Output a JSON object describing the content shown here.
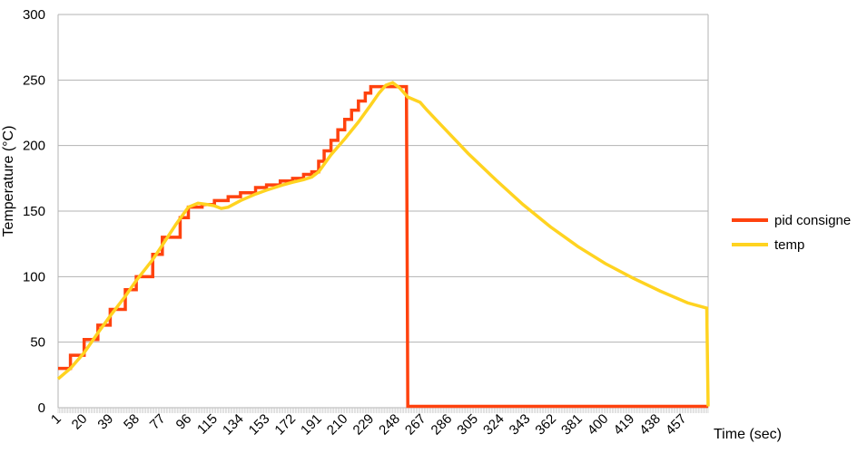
{
  "chart_data": {
    "type": "line",
    "title": "",
    "xlabel": "Time (sec)",
    "ylabel": "Temperature (°C)",
    "xlim": [
      1,
      475
    ],
    "ylim": [
      0,
      300
    ],
    "yticks": [
      0,
      50,
      100,
      150,
      200,
      250,
      300
    ],
    "xtick_labels": [
      "1",
      "20",
      "39",
      "58",
      "77",
      "96",
      "115",
      "134",
      "153",
      "172",
      "191",
      "210",
      "229",
      "248",
      "267",
      "286",
      "305",
      "324",
      "343",
      "362",
      "381",
      "400",
      "419",
      "438",
      "457"
    ],
    "grid": "horizontal",
    "legend_position": "right",
    "series": [
      {
        "name": "pid consigne",
        "color": "#ff420e",
        "x": [
          1,
          10,
          20,
          30,
          39,
          50,
          58,
          70,
          77,
          90,
          96,
          106,
          115,
          125,
          134,
          145,
          153,
          163,
          172,
          180,
          186,
          191,
          195,
          200,
          205,
          210,
          215,
          220,
          225,
          229,
          235,
          240,
          245,
          250,
          255,
          256,
          260,
          300,
          350,
          400,
          450,
          475
        ],
        "y": [
          30,
          40,
          52,
          63,
          75,
          90,
          100,
          117,
          130,
          145,
          153,
          155,
          158,
          161,
          164,
          168,
          170,
          173,
          175,
          178,
          180,
          188,
          196,
          204,
          212,
          220,
          227,
          234,
          240,
          245,
          245,
          245,
          245,
          245,
          245,
          1,
          1,
          1,
          1,
          1,
          1,
          1
        ]
      },
      {
        "name": "temp",
        "color": "#ffd320",
        "x": [
          1,
          10,
          20,
          30,
          39,
          50,
          58,
          70,
          77,
          87,
          96,
          103,
          110,
          115,
          120,
          125,
          134,
          145,
          153,
          165,
          172,
          180,
          186,
          191,
          200,
          210,
          220,
          229,
          235,
          240,
          245,
          250,
          256,
          265,
          270,
          280,
          290,
          300,
          320,
          340,
          360,
          380,
          400,
          420,
          440,
          460,
          474,
          475
        ],
        "y": [
          22,
          30,
          42,
          57,
          70,
          85,
          97,
          113,
          124,
          140,
          153,
          156,
          155,
          154,
          152,
          153,
          158,
          163,
          166,
          170,
          172,
          174,
          176,
          180,
          193,
          205,
          218,
          231,
          240,
          246,
          248,
          244,
          237,
          233,
          227,
          216,
          205,
          194,
          174,
          155,
          138,
          123,
          110,
          99,
          89,
          80,
          76,
          1
        ]
      }
    ]
  }
}
